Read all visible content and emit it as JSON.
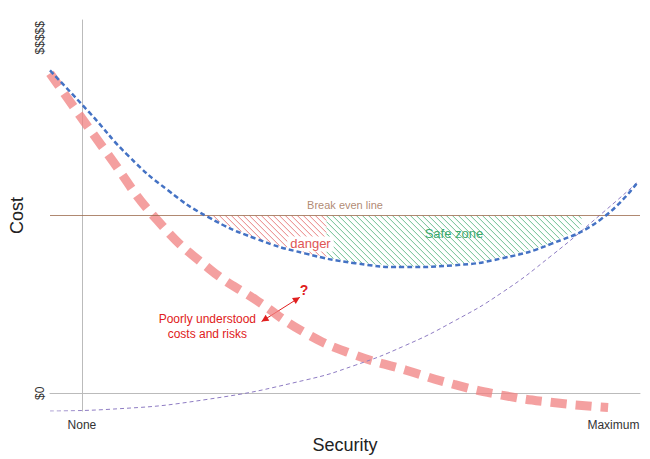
{
  "chart_data": {
    "type": "line",
    "x_label": "Security",
    "y_label": "Cost",
    "xlim": [
      -6,
      105
    ],
    "xticks": [
      {
        "value": 0,
        "label": "None"
      },
      {
        "value": 100,
        "label": "Maximum"
      }
    ],
    "ylim": [
      -5,
      105
    ],
    "yticks": [
      {
        "value": 0,
        "label": "$0"
      },
      {
        "value": 100,
        "label": "$$$$$"
      }
    ],
    "grid": false,
    "series": [
      {
        "color": "#4472c4",
        "line_style": "dashed",
        "x": [
          -6,
          1.4,
          8.8,
          16.2,
          23.6,
          32.9,
          42.1,
          51.4,
          60.6,
          69.9,
          79.1,
          88.4,
          97.6,
          104.5
        ],
        "values": [
          90.8,
          79,
          66.7,
          57.1,
          49.7,
          43.4,
          39.3,
          36.6,
          35.5,
          36,
          38,
          42.1,
          48.9,
          59.3
        ]
      },
      {
        "color": "#f08080",
        "line_style": "dashed",
        "x": [
          -6,
          5,
          14,
          24,
          33,
          42,
          51,
          61,
          70,
          79,
          88,
          99
        ],
        "values": [
          90,
          67,
          49,
          35,
          26,
          17,
          11,
          6.5,
          2.5,
          -0.5,
          -2.5,
          -4
        ]
      },
      {
        "color": "#8e7cc3",
        "line_style": "dashed",
        "x": [
          -6,
          5.1,
          23.6,
          42.1,
          51.4,
          60.6,
          69.9,
          79.1,
          88.4,
          97.6,
          104.5
        ],
        "values": [
          -5,
          -4.5,
          -1.7,
          3.75,
          7.9,
          13.3,
          20.2,
          28.4,
          38.8,
          50.3,
          59.3
        ]
      }
    ],
    "hlines": [
      {
        "y": 50,
        "label": "Break even line",
        "color": "#9c6b4e"
      }
    ],
    "regions": [
      {
        "label": "danger",
        "x": [
          23.6,
          46
        ],
        "label_x": 43,
        "label_y": 42,
        "color": "#e05555"
      },
      {
        "label": "Safe zone",
        "x": [
          46,
          94
        ],
        "label_x": 70,
        "label_y": 45,
        "color": "#3caa6e"
      }
    ],
    "annotations": [
      {
        "text": "Poorly understood\ncosts and risks",
        "x": 23.6,
        "y": 18.8,
        "color": "#e02020"
      },
      {
        "text": "?",
        "x": 41.8,
        "y": 29.2,
        "color": "#e02020"
      }
    ],
    "arrows": [
      {
        "from": [
          33.8,
          20.2
        ],
        "to": [
          41,
          27
        ],
        "color": "#e02020"
      }
    ]
  }
}
